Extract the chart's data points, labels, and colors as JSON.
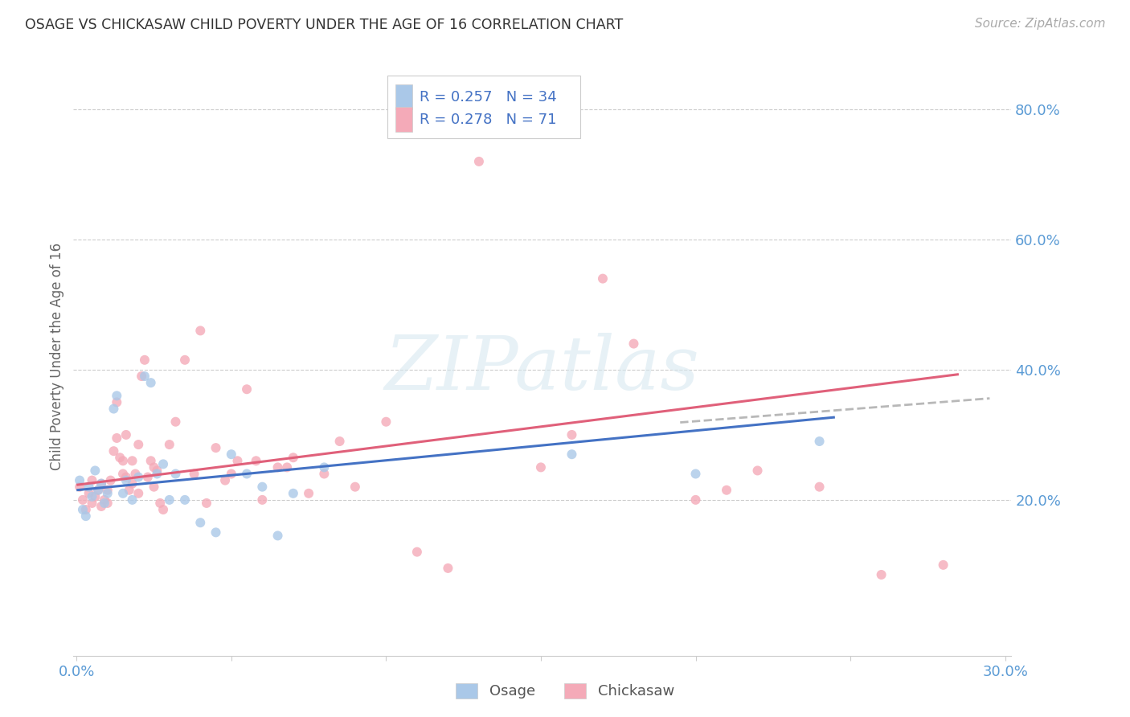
{
  "title": "OSAGE VS CHICKASAW CHILD POVERTY UNDER THE AGE OF 16 CORRELATION CHART",
  "source": "Source: ZipAtlas.com",
  "ylabel": "Child Poverty Under the Age of 16",
  "xlim": [
    -0.001,
    0.302
  ],
  "ylim": [
    -0.04,
    0.88
  ],
  "xticks": [
    0.0,
    0.05,
    0.1,
    0.15,
    0.2,
    0.25,
    0.3
  ],
  "xticklabels": [
    "0.0%",
    "",
    "",
    "",
    "",
    "",
    "30.0%"
  ],
  "yticks": [
    0.2,
    0.4,
    0.6,
    0.8
  ],
  "yticklabels": [
    "20.0%",
    "40.0%",
    "60.0%",
    "80.0%"
  ],
  "osage_face_color": "#aac8e8",
  "chickasaw_face_color": "#f4aab8",
  "osage_line_color": "#4472c4",
  "chickasaw_line_color": "#e0607a",
  "dashed_line_color": "#b8b8b8",
  "legend_text_color": "#333333",
  "legend_value_color": "#4472c4",
  "watermark": "ZIPatlas",
  "watermark_color": "#d8e8f0",
  "osage_x": [
    0.001,
    0.002,
    0.003,
    0.004,
    0.005,
    0.006,
    0.007,
    0.008,
    0.009,
    0.01,
    0.012,
    0.013,
    0.015,
    0.016,
    0.018,
    0.02,
    0.022,
    0.024,
    0.026,
    0.028,
    0.03,
    0.032,
    0.035,
    0.04,
    0.045,
    0.05,
    0.055,
    0.06,
    0.065,
    0.07,
    0.08,
    0.16,
    0.2,
    0.24
  ],
  "osage_y": [
    0.23,
    0.185,
    0.175,
    0.22,
    0.205,
    0.245,
    0.215,
    0.225,
    0.195,
    0.21,
    0.34,
    0.36,
    0.21,
    0.23,
    0.2,
    0.235,
    0.39,
    0.38,
    0.24,
    0.255,
    0.2,
    0.24,
    0.2,
    0.165,
    0.15,
    0.27,
    0.24,
    0.22,
    0.145,
    0.21,
    0.25,
    0.27,
    0.24,
    0.29
  ],
  "chickasaw_x": [
    0.001,
    0.002,
    0.003,
    0.004,
    0.005,
    0.005,
    0.006,
    0.007,
    0.008,
    0.008,
    0.009,
    0.01,
    0.01,
    0.011,
    0.012,
    0.013,
    0.013,
    0.014,
    0.015,
    0.015,
    0.016,
    0.016,
    0.017,
    0.018,
    0.018,
    0.019,
    0.02,
    0.02,
    0.021,
    0.022,
    0.023,
    0.024,
    0.025,
    0.025,
    0.026,
    0.027,
    0.028,
    0.03,
    0.032,
    0.035,
    0.038,
    0.04,
    0.042,
    0.045,
    0.048,
    0.05,
    0.052,
    0.055,
    0.058,
    0.06,
    0.065,
    0.068,
    0.07,
    0.075,
    0.08,
    0.085,
    0.09,
    0.1,
    0.11,
    0.12,
    0.13,
    0.15,
    0.16,
    0.17,
    0.18,
    0.2,
    0.21,
    0.22,
    0.24,
    0.26,
    0.28
  ],
  "chickasaw_y": [
    0.22,
    0.2,
    0.185,
    0.21,
    0.195,
    0.23,
    0.205,
    0.215,
    0.19,
    0.225,
    0.2,
    0.215,
    0.195,
    0.23,
    0.275,
    0.35,
    0.295,
    0.265,
    0.24,
    0.26,
    0.235,
    0.3,
    0.215,
    0.225,
    0.26,
    0.24,
    0.285,
    0.21,
    0.39,
    0.415,
    0.235,
    0.26,
    0.25,
    0.22,
    0.245,
    0.195,
    0.185,
    0.285,
    0.32,
    0.415,
    0.24,
    0.46,
    0.195,
    0.28,
    0.23,
    0.24,
    0.26,
    0.37,
    0.26,
    0.2,
    0.25,
    0.25,
    0.265,
    0.21,
    0.24,
    0.29,
    0.22,
    0.32,
    0.12,
    0.095,
    0.72,
    0.25,
    0.3,
    0.54,
    0.44,
    0.2,
    0.215,
    0.245,
    0.22,
    0.085,
    0.1
  ],
  "osage_trend_x": [
    0.0,
    0.245
  ],
  "osage_trend_y": [
    0.215,
    0.327
  ],
  "chickasaw_trend_x": [
    0.0,
    0.285
  ],
  "chickasaw_trend_y": [
    0.223,
    0.393
  ],
  "dashed_trend_x": [
    0.195,
    0.295
  ],
  "dashed_trend_y": [
    0.319,
    0.356
  ],
  "bg_color": "#ffffff",
  "grid_color": "#cccccc",
  "title_color": "#333333",
  "tick_label_color": "#5b9bd5",
  "spine_color": "#cccccc"
}
